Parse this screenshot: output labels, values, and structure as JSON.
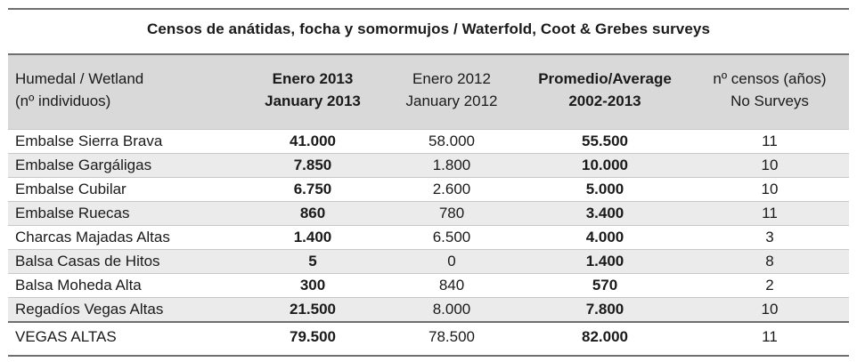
{
  "title": "Censos de anátidas, focha y somormujos / Waterfold, Coot & Grebes surveys",
  "header": {
    "col1": [
      "Humedal / Wetland",
      "(nº individuos)"
    ],
    "col2": [
      "Enero 2013",
      "January 2013"
    ],
    "col3": [
      "Enero 2012",
      "January 2012"
    ],
    "col4": [
      "Promedio/Average",
      "2002-2013"
    ],
    "col5": [
      "nº censos (años)",
      "No Surveys"
    ]
  },
  "rows": [
    {
      "wetland": "Embalse Sierra Brava",
      "jan2013": "41.000",
      "jan2012": "58.000",
      "average": "55.500",
      "surveys": "11"
    },
    {
      "wetland": "Embalse Gargáligas",
      "jan2013": "7.850",
      "jan2012": "1.800",
      "average": "10.000",
      "surveys": "10"
    },
    {
      "wetland": "Embalse Cubilar",
      "jan2013": "6.750",
      "jan2012": "2.600",
      "average": "5.000",
      "surveys": "10"
    },
    {
      "wetland": "Embalse Ruecas",
      "jan2013": "860",
      "jan2012": "780",
      "average": "3.400",
      "surveys": "11"
    },
    {
      "wetland": "Charcas Majadas Altas",
      "jan2013": "1.400",
      "jan2012": "6.500",
      "average": "4.000",
      "surveys": "3"
    },
    {
      "wetland": "Balsa Casas de Hitos",
      "jan2013": "5",
      "jan2012": "0",
      "average": "1.400",
      "surveys": "8"
    },
    {
      "wetland": "Balsa Moheda Alta",
      "jan2013": "300",
      "jan2012": "840",
      "average": "570",
      "surveys": "2"
    },
    {
      "wetland": "Regadíos Vegas Altas",
      "jan2013": "21.500",
      "jan2012": "8.000",
      "average": "7.800",
      "surveys": "10"
    }
  ],
  "total": {
    "wetland": "VEGAS ALTAS",
    "jan2013": "79.500",
    "jan2012": "78.500",
    "average": "82.000",
    "surveys": "11"
  }
}
